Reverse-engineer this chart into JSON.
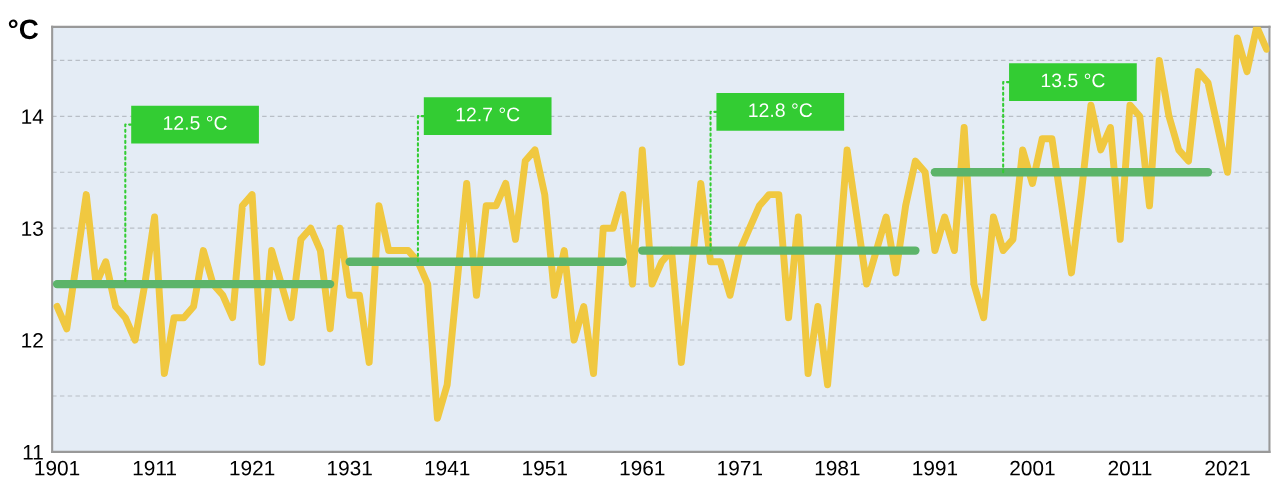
{
  "chart_data": {
    "type": "line",
    "ylabel": "°C",
    "x": [
      1901,
      1902,
      1903,
      1904,
      1905,
      1906,
      1907,
      1908,
      1909,
      1910,
      1911,
      1912,
      1913,
      1914,
      1915,
      1916,
      1917,
      1918,
      1919,
      1920,
      1921,
      1922,
      1923,
      1924,
      1925,
      1926,
      1927,
      1928,
      1929,
      1930,
      1931,
      1932,
      1933,
      1934,
      1935,
      1936,
      1937,
      1938,
      1939,
      1940,
      1941,
      1942,
      1943,
      1944,
      1945,
      1946,
      1947,
      1948,
      1949,
      1950,
      1951,
      1952,
      1953,
      1954,
      1955,
      1956,
      1957,
      1958,
      1959,
      1960,
      1961,
      1962,
      1963,
      1964,
      1965,
      1966,
      1967,
      1968,
      1969,
      1970,
      1971,
      1972,
      1973,
      1974,
      1975,
      1976,
      1977,
      1978,
      1979,
      1980,
      1981,
      1982,
      1983,
      1984,
      1985,
      1986,
      1987,
      1988,
      1989,
      1990,
      1991,
      1992,
      1993,
      1994,
      1995,
      1996,
      1997,
      1998,
      1999,
      2000,
      2001,
      2002,
      2003,
      2004,
      2005,
      2006,
      2007,
      2008,
      2009,
      2010,
      2011,
      2012,
      2013,
      2014,
      2015,
      2016,
      2017,
      2018,
      2019,
      2020,
      2021,
      2022,
      2023,
      2024,
      2025
    ],
    "series": [
      {
        "color": "#f0c840",
        "values": [
          12.3,
          12.1,
          12.7,
          13.3,
          12.5,
          12.7,
          12.3,
          12.2,
          12.0,
          12.5,
          13.1,
          11.7,
          12.2,
          12.2,
          12.3,
          12.8,
          12.5,
          12.4,
          12.2,
          13.2,
          13.3,
          11.8,
          12.8,
          12.5,
          12.2,
          12.9,
          13.0,
          12.8,
          12.1,
          13.0,
          12.4,
          12.4,
          11.8,
          13.2,
          12.8,
          12.8,
          12.8,
          12.7,
          12.5,
          11.3,
          11.6,
          12.5,
          13.4,
          12.4,
          13.2,
          13.2,
          13.4,
          12.9,
          13.6,
          13.7,
          13.3,
          12.4,
          12.8,
          12.0,
          12.3,
          11.7,
          13.0,
          13.0,
          13.3,
          12.5,
          13.7,
          12.5,
          12.7,
          12.8,
          11.8,
          12.6,
          13.4,
          12.7,
          12.7,
          12.4,
          12.8,
          13.0,
          13.2,
          13.3,
          13.3,
          12.2,
          13.1,
          11.7,
          12.3,
          11.6,
          12.6,
          13.7,
          13.1,
          12.5,
          12.8,
          13.1,
          12.6,
          13.2,
          13.6,
          13.5,
          12.8,
          13.1,
          12.8,
          13.9,
          12.5,
          12.2,
          13.1,
          12.8,
          12.9,
          13.7,
          13.4,
          13.8,
          13.8,
          13.2,
          12.6,
          13.3,
          14.1,
          13.7,
          13.9,
          12.9,
          14.1,
          14.0,
          13.2,
          14.5,
          14.0,
          13.7,
          13.6,
          14.4,
          14.3,
          13.9,
          13.5,
          14.7,
          14.4,
          14.8,
          14.6
        ]
      },
      {
        "type": "line",
        "color": "#5cb46a",
        "x": [
          1901,
          1929
        ],
        "values": [
          12.5,
          12.5
        ]
      },
      {
        "type": "line",
        "color": "#5cb46a",
        "x": [
          1931,
          1959
        ],
        "values": [
          12.7,
          12.7
        ]
      },
      {
        "type": "line",
        "color": "#5cb46a",
        "x": [
          1961,
          1989
        ],
        "values": [
          12.8,
          12.8
        ]
      },
      {
        "type": "line",
        "color": "#5cb46a",
        "x": [
          1991,
          2019
        ],
        "values": [
          13.5,
          13.5
        ]
      }
    ],
    "annotations": [
      "12.5 °C",
      "12.7 °C",
      "12.8 °C",
      "13.5 °C"
    ],
    "xlim": [
      1900.5,
      2025.3
    ],
    "xticks": [
      1901,
      1911,
      1921,
      1931,
      1941,
      1951,
      1961,
      1971,
      1981,
      1991,
      2001,
      2011,
      2021
    ],
    "ylim": [
      11,
      14.8
    ],
    "yticks": [
      11,
      {
        "value": 11.5,
        "label": null
      },
      12,
      {
        "value": 12.5,
        "label": null
      },
      13,
      {
        "value": 13.5,
        "label": null
      },
      14,
      {
        "value": 14.5,
        "label": null
      }
    ],
    "grid": "y",
    "legend": false
  }
}
